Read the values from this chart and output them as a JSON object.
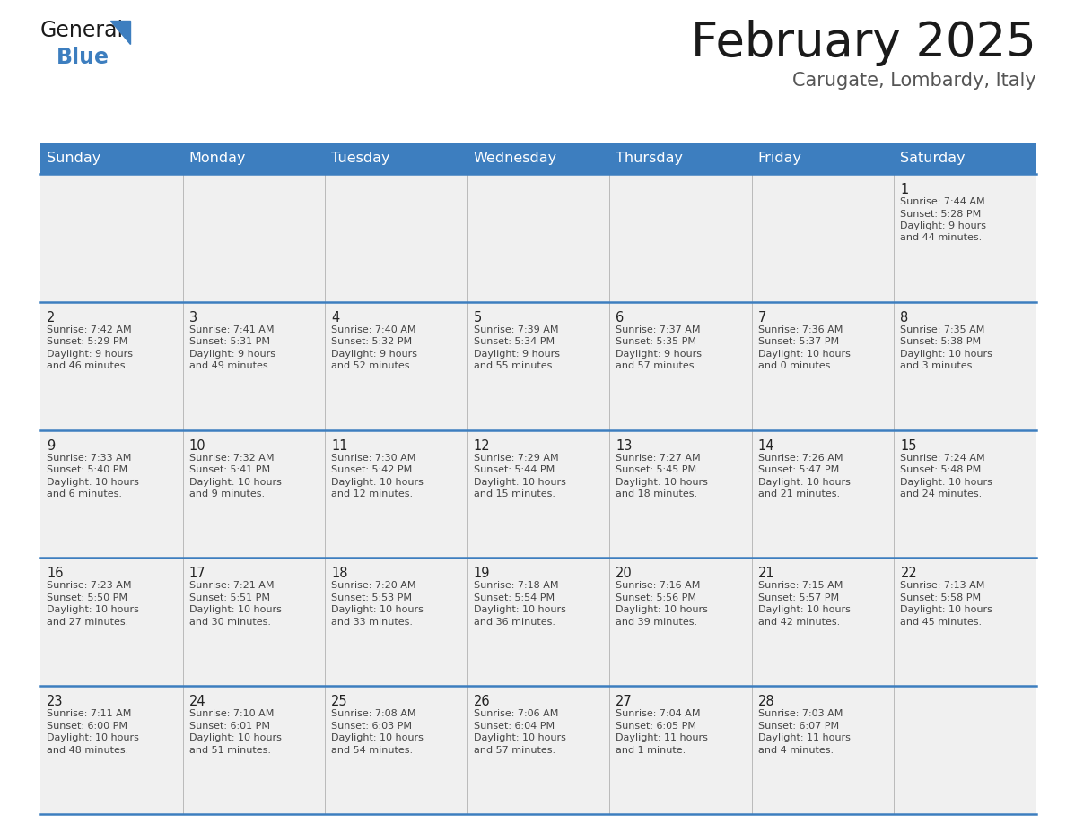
{
  "title": "February 2025",
  "subtitle": "Carugate, Lombardy, Italy",
  "header_color": "#3d7ebf",
  "header_text_color": "#ffffff",
  "cell_bg_light": "#f0f0f0",
  "cell_bg_white": "#ffffff",
  "border_color": "#3d7ebf",
  "text_color_dark": "#333333",
  "day_names": [
    "Sunday",
    "Monday",
    "Tuesday",
    "Wednesday",
    "Thursday",
    "Friday",
    "Saturday"
  ],
  "days_data": [
    {
      "day": 1,
      "col": 6,
      "row": 0,
      "sunrise": "7:44 AM",
      "sunset": "5:28 PM",
      "daylight": "9 hours and 44 minutes."
    },
    {
      "day": 2,
      "col": 0,
      "row": 1,
      "sunrise": "7:42 AM",
      "sunset": "5:29 PM",
      "daylight": "9 hours and 46 minutes."
    },
    {
      "day": 3,
      "col": 1,
      "row": 1,
      "sunrise": "7:41 AM",
      "sunset": "5:31 PM",
      "daylight": "9 hours and 49 minutes."
    },
    {
      "day": 4,
      "col": 2,
      "row": 1,
      "sunrise": "7:40 AM",
      "sunset": "5:32 PM",
      "daylight": "9 hours and 52 minutes."
    },
    {
      "day": 5,
      "col": 3,
      "row": 1,
      "sunrise": "7:39 AM",
      "sunset": "5:34 PM",
      "daylight": "9 hours and 55 minutes."
    },
    {
      "day": 6,
      "col": 4,
      "row": 1,
      "sunrise": "7:37 AM",
      "sunset": "5:35 PM",
      "daylight": "9 hours and 57 minutes."
    },
    {
      "day": 7,
      "col": 5,
      "row": 1,
      "sunrise": "7:36 AM",
      "sunset": "5:37 PM",
      "daylight": "10 hours and 0 minutes."
    },
    {
      "day": 8,
      "col": 6,
      "row": 1,
      "sunrise": "7:35 AM",
      "sunset": "5:38 PM",
      "daylight": "10 hours and 3 minutes."
    },
    {
      "day": 9,
      "col": 0,
      "row": 2,
      "sunrise": "7:33 AM",
      "sunset": "5:40 PM",
      "daylight": "10 hours and 6 minutes."
    },
    {
      "day": 10,
      "col": 1,
      "row": 2,
      "sunrise": "7:32 AM",
      "sunset": "5:41 PM",
      "daylight": "10 hours and 9 minutes."
    },
    {
      "day": 11,
      "col": 2,
      "row": 2,
      "sunrise": "7:30 AM",
      "sunset": "5:42 PM",
      "daylight": "10 hours and 12 minutes."
    },
    {
      "day": 12,
      "col": 3,
      "row": 2,
      "sunrise": "7:29 AM",
      "sunset": "5:44 PM",
      "daylight": "10 hours and 15 minutes."
    },
    {
      "day": 13,
      "col": 4,
      "row": 2,
      "sunrise": "7:27 AM",
      "sunset": "5:45 PM",
      "daylight": "10 hours and 18 minutes."
    },
    {
      "day": 14,
      "col": 5,
      "row": 2,
      "sunrise": "7:26 AM",
      "sunset": "5:47 PM",
      "daylight": "10 hours and 21 minutes."
    },
    {
      "day": 15,
      "col": 6,
      "row": 2,
      "sunrise": "7:24 AM",
      "sunset": "5:48 PM",
      "daylight": "10 hours and 24 minutes."
    },
    {
      "day": 16,
      "col": 0,
      "row": 3,
      "sunrise": "7:23 AM",
      "sunset": "5:50 PM",
      "daylight": "10 hours and 27 minutes."
    },
    {
      "day": 17,
      "col": 1,
      "row": 3,
      "sunrise": "7:21 AM",
      "sunset": "5:51 PM",
      "daylight": "10 hours and 30 minutes."
    },
    {
      "day": 18,
      "col": 2,
      "row": 3,
      "sunrise": "7:20 AM",
      "sunset": "5:53 PM",
      "daylight": "10 hours and 33 minutes."
    },
    {
      "day": 19,
      "col": 3,
      "row": 3,
      "sunrise": "7:18 AM",
      "sunset": "5:54 PM",
      "daylight": "10 hours and 36 minutes."
    },
    {
      "day": 20,
      "col": 4,
      "row": 3,
      "sunrise": "7:16 AM",
      "sunset": "5:56 PM",
      "daylight": "10 hours and 39 minutes."
    },
    {
      "day": 21,
      "col": 5,
      "row": 3,
      "sunrise": "7:15 AM",
      "sunset": "5:57 PM",
      "daylight": "10 hours and 42 minutes."
    },
    {
      "day": 22,
      "col": 6,
      "row": 3,
      "sunrise": "7:13 AM",
      "sunset": "5:58 PM",
      "daylight": "10 hours and 45 minutes."
    },
    {
      "day": 23,
      "col": 0,
      "row": 4,
      "sunrise": "7:11 AM",
      "sunset": "6:00 PM",
      "daylight": "10 hours and 48 minutes."
    },
    {
      "day": 24,
      "col": 1,
      "row": 4,
      "sunrise": "7:10 AM",
      "sunset": "6:01 PM",
      "daylight": "10 hours and 51 minutes."
    },
    {
      "day": 25,
      "col": 2,
      "row": 4,
      "sunrise": "7:08 AM",
      "sunset": "6:03 PM",
      "daylight": "10 hours and 54 minutes."
    },
    {
      "day": 26,
      "col": 3,
      "row": 4,
      "sunrise": "7:06 AM",
      "sunset": "6:04 PM",
      "daylight": "10 hours and 57 minutes."
    },
    {
      "day": 27,
      "col": 4,
      "row": 4,
      "sunrise": "7:04 AM",
      "sunset": "6:05 PM",
      "daylight": "11 hours and 1 minute."
    },
    {
      "day": 28,
      "col": 5,
      "row": 4,
      "sunrise": "7:03 AM",
      "sunset": "6:07 PM",
      "daylight": "11 hours and 4 minutes."
    }
  ],
  "num_rows": 5,
  "num_cols": 7,
  "logo_text1": "General",
  "logo_text2": "Blue",
  "logo_color1": "#1a1a1a",
  "logo_color2": "#3d7ebf",
  "title_fontsize": 38,
  "subtitle_fontsize": 15,
  "dayname_fontsize": 11.5,
  "daynum_fontsize": 10.5,
  "info_fontsize": 8.0
}
